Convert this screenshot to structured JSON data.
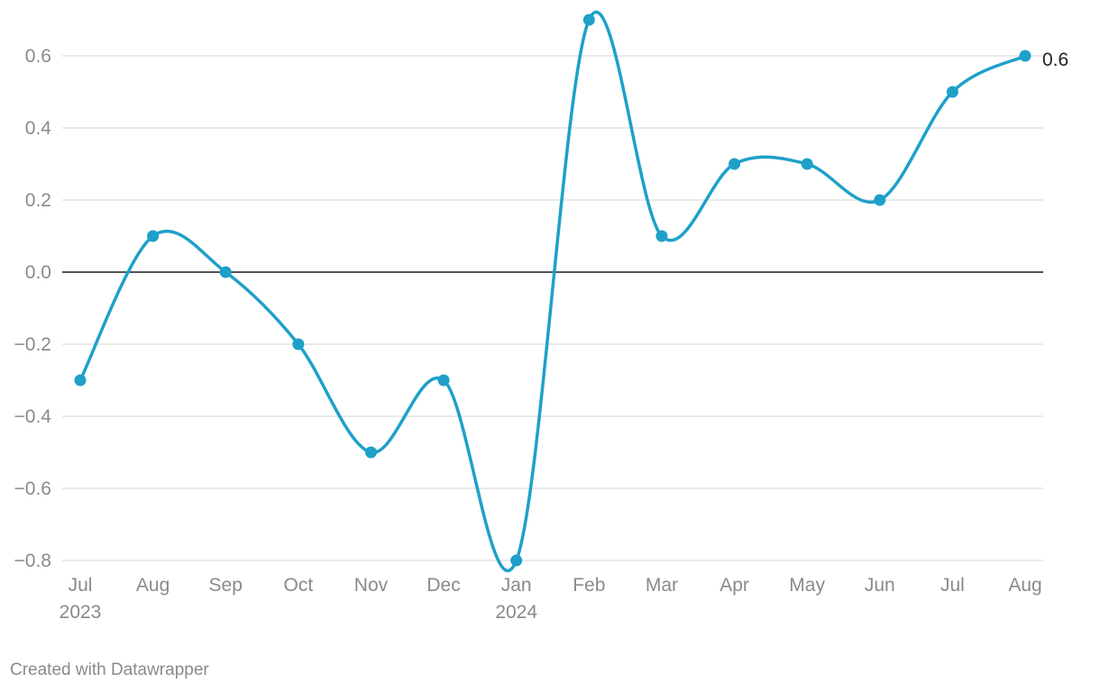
{
  "chart_data": {
    "type": "line",
    "x": [
      "Jul 2023",
      "Aug 2023",
      "Sep 2023",
      "Oct 2023",
      "Nov 2023",
      "Dec 2023",
      "Jan 2024",
      "Feb 2024",
      "Mar 2024",
      "Apr 2024",
      "May 2024",
      "Jun 2024",
      "Jul 2024",
      "Aug 2024"
    ],
    "x_tick_labels": [
      {
        "month": "Jul",
        "year": "2023"
      },
      {
        "month": "Aug",
        "year": ""
      },
      {
        "month": "Sep",
        "year": ""
      },
      {
        "month": "Oct",
        "year": ""
      },
      {
        "month": "Nov",
        "year": ""
      },
      {
        "month": "Dec",
        "year": ""
      },
      {
        "month": "Jan",
        "year": "2024"
      },
      {
        "month": "Feb",
        "year": ""
      },
      {
        "month": "Mar",
        "year": ""
      },
      {
        "month": "Apr",
        "year": ""
      },
      {
        "month": "May",
        "year": ""
      },
      {
        "month": "Jun",
        "year": ""
      },
      {
        "month": "Jul",
        "year": ""
      },
      {
        "month": "Aug",
        "year": ""
      }
    ],
    "series": [
      {
        "values": [
          -0.3,
          0.1,
          0.0,
          -0.2,
          -0.5,
          -0.3,
          -0.8,
          0.7,
          0.1,
          0.3,
          0.3,
          0.2,
          0.5,
          0.6
        ],
        "color": "#1ea0c9"
      }
    ],
    "y_ticks": [
      0.6,
      0.4,
      0.2,
      0.0,
      -0.2,
      -0.4,
      -0.6,
      -0.8
    ],
    "y_tick_labels": [
      "0.6",
      "0.4",
      "0.2",
      "0.0",
      "−0.2",
      "−0.4",
      "−0.6",
      "−0.8"
    ],
    "ylim": [
      -0.8,
      0.75
    ],
    "end_label": "0.6",
    "title": "",
    "xlabel": "",
    "ylabel": "",
    "grid": true,
    "zero_line": true
  },
  "footer": {
    "credit": "Created with Datawrapper"
  }
}
